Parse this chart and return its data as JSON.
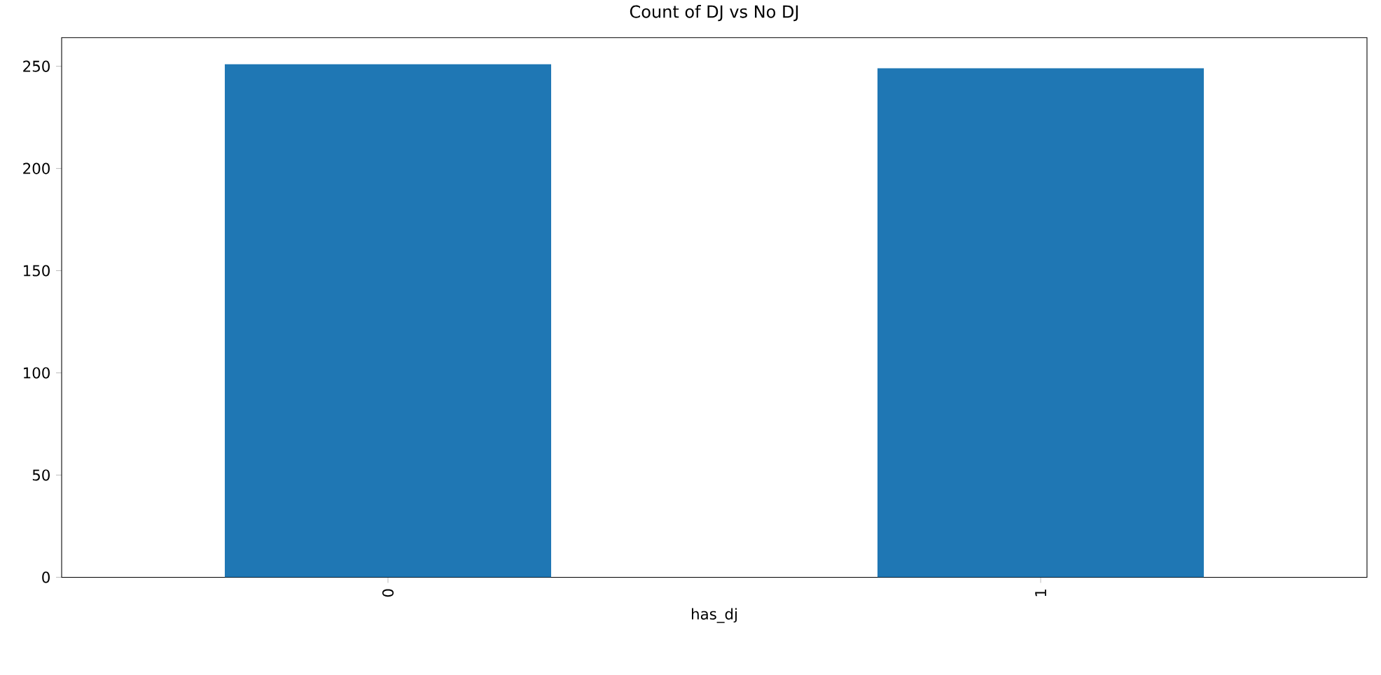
{
  "chart_data": {
    "type": "bar",
    "title": "Count of DJ vs No DJ",
    "xlabel": "has_dj",
    "categories": [
      "0",
      "1"
    ],
    "values": [
      251,
      249
    ],
    "color": "#1f77b4",
    "ylim": [
      0,
      264
    ],
    "yticks": [
      0,
      50,
      100,
      150,
      200,
      250
    ]
  }
}
